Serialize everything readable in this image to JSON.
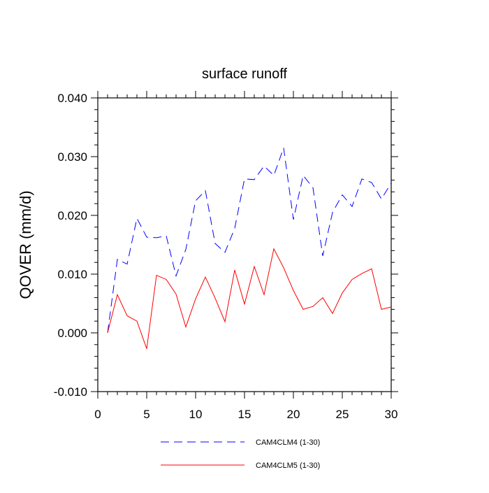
{
  "chart_data": {
    "type": "line",
    "title": "surface runoff",
    "xlabel": "",
    "ylabel": "QOVER  (mm/d)",
    "xlim": [
      0,
      30
    ],
    "ylim": [
      -0.01,
      0.04
    ],
    "xticks": [
      0,
      5,
      10,
      15,
      20,
      25,
      30
    ],
    "xtick_labels": [
      "0",
      "5",
      "10",
      "15",
      "20",
      "25",
      "30"
    ],
    "yticks": [
      -0.01,
      0.0,
      0.01,
      0.02,
      0.03,
      0.04
    ],
    "ytick_labels": [
      "-0.010",
      "0.000",
      "0.010",
      "0.020",
      "0.030",
      "0.040"
    ],
    "grid": false,
    "legend_position": "bottom-center",
    "x": [
      1,
      2,
      3,
      4,
      5,
      6,
      7,
      8,
      9,
      10,
      11,
      12,
      13,
      14,
      15,
      16,
      17,
      18,
      19,
      20,
      21,
      22,
      23,
      24,
      25,
      26,
      27,
      28,
      29,
      30
    ],
    "series": [
      {
        "name": "CAM4CLM4 (1-30)",
        "color": "#0000ff",
        "dash": "dashed",
        "values": [
          0.0,
          0.0125,
          0.0117,
          0.0195,
          0.0163,
          0.0162,
          0.0165,
          0.0097,
          0.0142,
          0.0225,
          0.0242,
          0.0152,
          0.0137,
          0.0178,
          0.0262,
          0.0261,
          0.0284,
          0.0268,
          0.0315,
          0.0193,
          0.0268,
          0.0247,
          0.0131,
          0.0205,
          0.0235,
          0.0215,
          0.0262,
          0.0256,
          0.0228,
          0.0255
        ]
      },
      {
        "name": "CAM4CLM5 (1-30)",
        "color": "#ff0000",
        "dash": "solid",
        "values": [
          0.0,
          0.0065,
          0.0029,
          0.002,
          -0.0027,
          0.0098,
          0.0091,
          0.0066,
          0.001,
          0.0058,
          0.0095,
          0.0059,
          0.0019,
          0.0107,
          0.0049,
          0.0113,
          0.0065,
          0.0143,
          0.0111,
          0.0072,
          0.004,
          0.0045,
          0.006,
          0.0033,
          0.0068,
          0.0091,
          0.0101,
          0.0109,
          0.004,
          0.0044
        ]
      }
    ]
  }
}
